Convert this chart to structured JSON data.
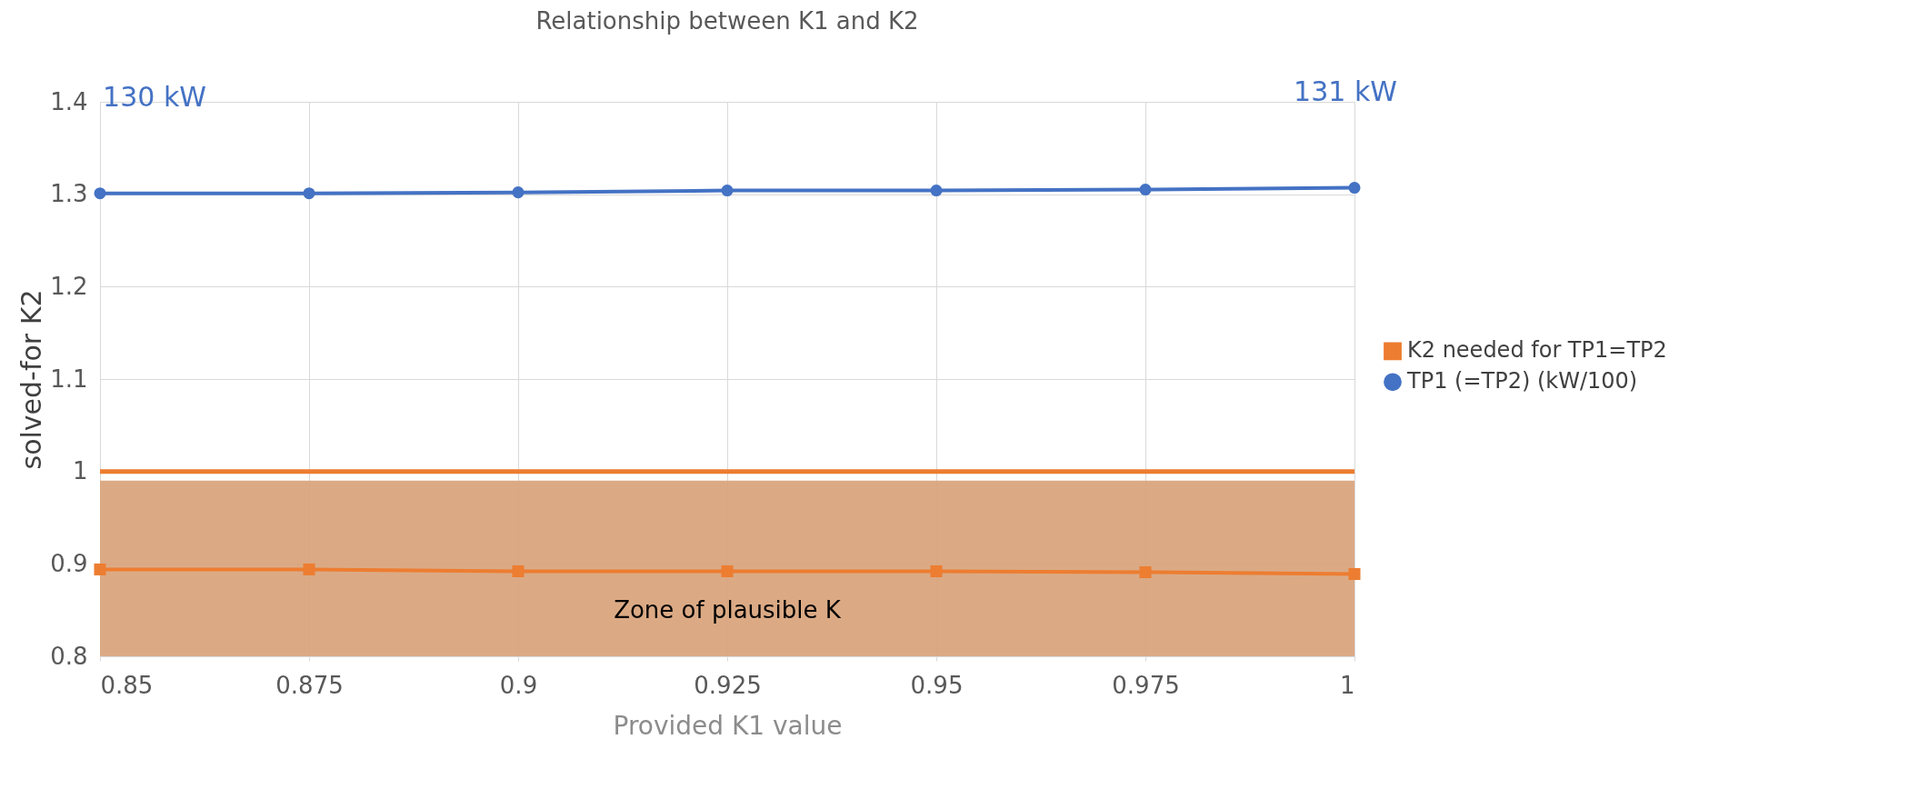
{
  "chart_data": {
    "type": "line",
    "title": "Relationship between K1 and K2",
    "xlabel": "Provided K1 value",
    "ylabel": "solved-for K2",
    "x": [
      0.85,
      0.875,
      0.9,
      0.925,
      0.95,
      0.975,
      1.0
    ],
    "series": [
      {
        "name": "K2 needed for TP1=TP2",
        "color": "#ed7d31",
        "marker": "square",
        "values": [
          0.894,
          0.894,
          0.892,
          0.892,
          0.892,
          0.891,
          0.889
        ]
      },
      {
        "name": "TP1 (=TP2) (kW/100)",
        "color": "#4472c4",
        "marker": "circle",
        "values": [
          1.301,
          1.301,
          1.302,
          1.304,
          1.304,
          1.305,
          1.307
        ]
      }
    ],
    "xlim": [
      0.85,
      1.0
    ],
    "xticks": [
      0.85,
      0.875,
      0.9,
      0.925,
      0.95,
      0.975,
      1
    ],
    "ylim": [
      0.8,
      1.4
    ],
    "yticks": [
      0.8,
      0.9,
      1,
      1.1,
      1.2,
      1.3,
      1.4
    ],
    "grid": true,
    "legend": "right",
    "line_style": "solid",
    "ref_lines": [
      {
        "axis": "y",
        "value": 1,
        "color": "#ed7d31",
        "line_style": "solid"
      }
    ],
    "bands": [
      {
        "axis": "y",
        "from": 0.8,
        "to": 0.99,
        "label": "Zone of plausible K",
        "color": "#d9a57e"
      }
    ],
    "annotations": [
      {
        "text": "130 kW",
        "x": 0.85,
        "y": 1.301
      },
      {
        "text": "131 kW",
        "x": 1.0,
        "y": 1.307
      }
    ]
  }
}
